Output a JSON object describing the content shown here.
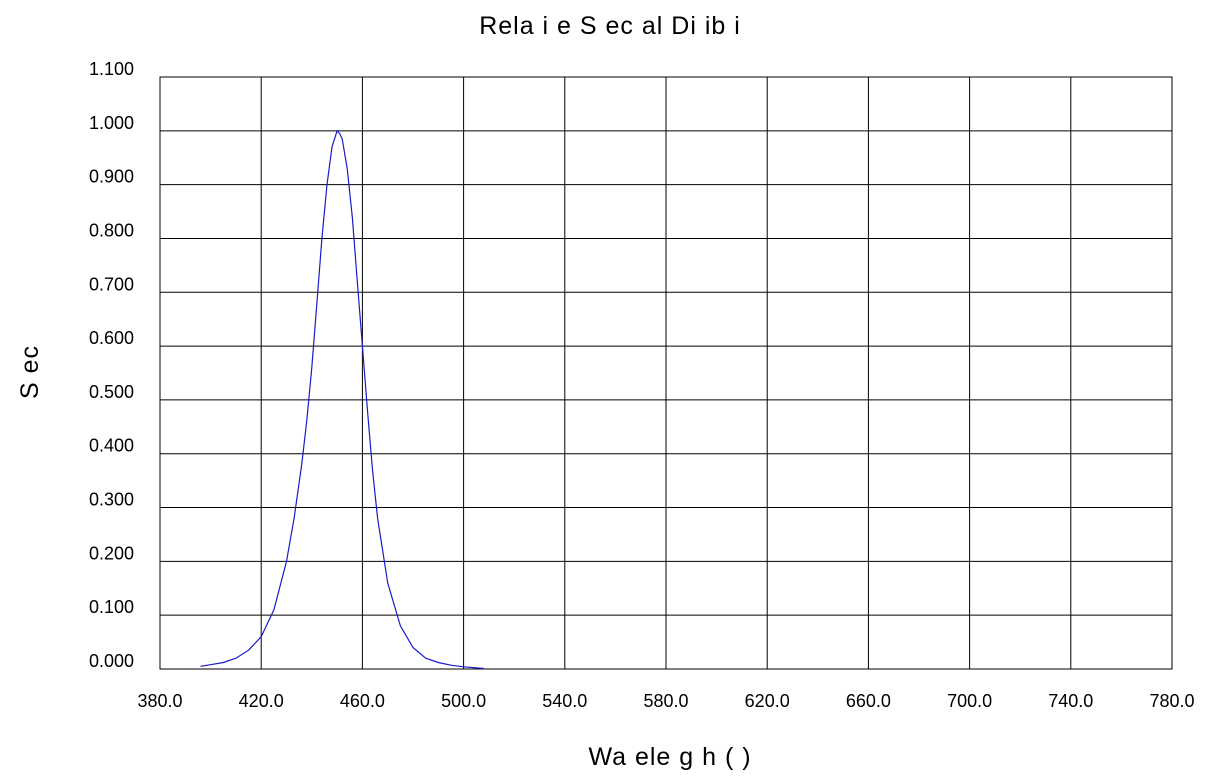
{
  "chart_data": {
    "type": "line",
    "title": "Rela i e S ec al Di ib i",
    "xlabel": "Wa ele g h ( )",
    "ylabel": "S ec",
    "xlim": [
      380,
      780
    ],
    "ylim": [
      0,
      1.1
    ],
    "x_ticks": [
      "380.0",
      "420.0",
      "460.0",
      "500.0",
      "540.0",
      "580.0",
      "620.0",
      "660.0",
      "700.0",
      "740.0",
      "780.0"
    ],
    "y_ticks": [
      "0.000",
      "0.100",
      "0.200",
      "0.300",
      "0.400",
      "0.500",
      "0.600",
      "0.700",
      "0.800",
      "0.900",
      "1.000",
      "1.100"
    ],
    "grid": true,
    "series": [
      {
        "color": "#1a1acc",
        "x": [
          396,
          400,
          405,
          410,
          415,
          420,
          425,
          430,
          433,
          436,
          438,
          440,
          442,
          444,
          446,
          448,
          450,
          451,
          452,
          454,
          456,
          458,
          460,
          462,
          464,
          466,
          470,
          475,
          480,
          485,
          490,
          495,
          500,
          505,
          508
        ],
        "y": [
          0.005,
          0.008,
          0.012,
          0.02,
          0.035,
          0.06,
          0.11,
          0.2,
          0.28,
          0.38,
          0.46,
          0.56,
          0.68,
          0.8,
          0.9,
          0.97,
          1.0,
          0.995,
          0.985,
          0.93,
          0.84,
          0.72,
          0.6,
          0.48,
          0.37,
          0.28,
          0.16,
          0.08,
          0.04,
          0.02,
          0.012,
          0.007,
          0.004,
          0.002,
          0.001
        ]
      }
    ]
  }
}
